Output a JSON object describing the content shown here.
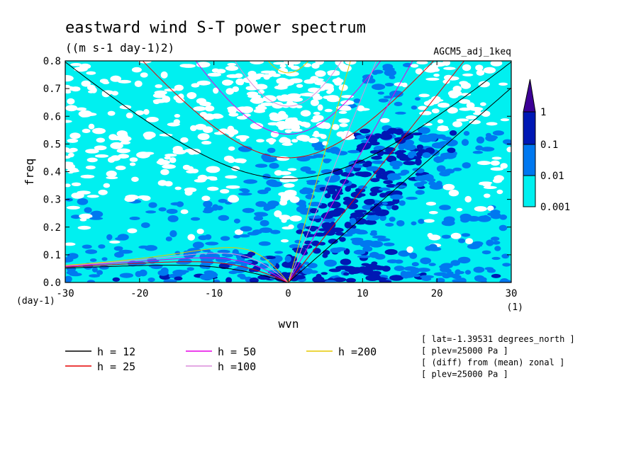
{
  "title": "eastward wind S-T power spectrum",
  "units": "((m s-1 day-1)2)",
  "run_name": "AGCM5_adj_1keq",
  "chart_data": {
    "type": "heatmap",
    "xlabel": "wvn",
    "ylabel": "freq",
    "xunit": "(1)",
    "yunit": "(day-1)",
    "xlim": [
      -30,
      30
    ],
    "ylim": [
      0,
      0.8
    ],
    "xticks": [
      "-30",
      "-20",
      "-10",
      "0",
      "10",
      "20",
      "30"
    ],
    "yticks": [
      "0.0",
      "0.1",
      "0.2",
      "0.3",
      "0.4",
      "0.5",
      "0.6",
      "0.7",
      "0.8"
    ],
    "colorbar": {
      "levels": [
        "0.001",
        "0.01",
        "0.1",
        "1"
      ],
      "colors": [
        "#00f0f0",
        "#0078f0",
        "#0018b4",
        "#3c0096"
      ]
    },
    "series": [
      {
        "name": "h = 12",
        "equivalent_depth": 12,
        "color": "#000000"
      },
      {
        "name": "h = 25",
        "equivalent_depth": 25,
        "color": "#e60000"
      },
      {
        "name": "h = 50",
        "equivalent_depth": 50,
        "color": "#e600e6"
      },
      {
        "name": "h =100",
        "equivalent_depth": 100,
        "color": "#dc8cdc"
      },
      {
        "name": "h =200",
        "equivalent_depth": 200,
        "color": "#e6c800"
      }
    ]
  },
  "info_lines": [
    "[ lat=-1.39531 degrees_north ]",
    "[ plev=25000 Pa ]",
    "[ (diff) from (mean) zonal ]",
    "[ plev=25000 Pa ]"
  ]
}
